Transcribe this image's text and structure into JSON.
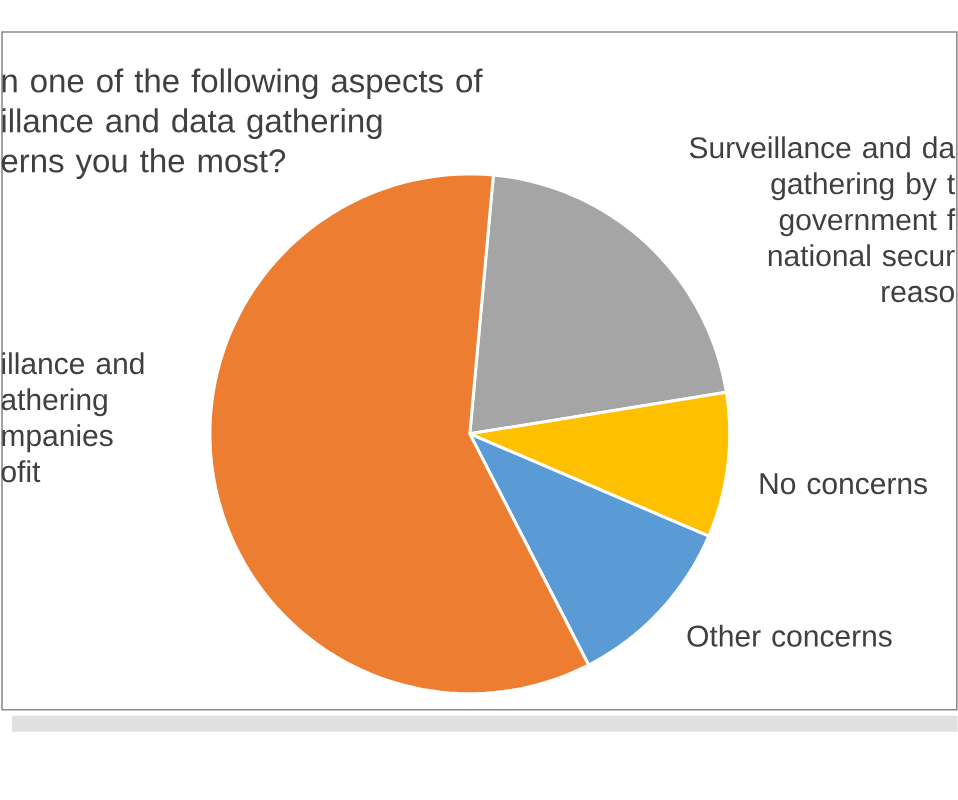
{
  "chart_data": {
    "type": "pie",
    "title": "n one of the following aspects of\nillance and data gathering\nerns you the most?",
    "categories": [
      "Surveillance and da\ngathering by t\ngovernment f\nnational secur\nreaso",
      "No concerns",
      "Other concerns",
      "illance and\nathering\nmpanies\nofit"
    ],
    "values": [
      21,
      9,
      11,
      59
    ],
    "colors": [
      "#a5a5a5",
      "#ffc000",
      "#5b9bd5",
      "#ed7d31"
    ]
  }
}
